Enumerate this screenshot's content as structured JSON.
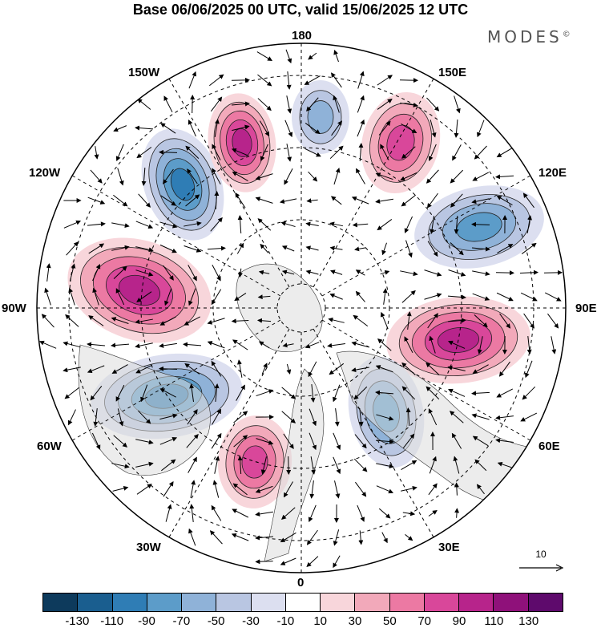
{
  "title": "Base 06/06/2025 00 UTC, valid 15/06/2025 12 UTC",
  "brand": {
    "name": "MODES",
    "mark": "©"
  },
  "longitude_labels": {
    "top": "180",
    "bottom": "0",
    "left": "90W",
    "right": "90E",
    "nw_upper": "150W",
    "nw_lower": "120W",
    "ne_upper": "150E",
    "ne_lower": "120E",
    "sw_upper": "60W",
    "sw_lower": "30W",
    "se_upper": "60E",
    "se_lower": "30E"
  },
  "reference_vector": {
    "label": "10"
  },
  "colorbar": {
    "colors": [
      "#0d3a5c",
      "#1a5e8f",
      "#2f7db5",
      "#5c9cc9",
      "#8fb2d8",
      "#b9c6e2",
      "#dcdff0",
      "#ffffff",
      "#f8d6db",
      "#f2a9ba",
      "#ec79a3",
      "#d9479a",
      "#b7248b",
      "#8f117a",
      "#5e0a6c"
    ],
    "tick_labels": [
      "-130",
      "-110",
      "-90",
      "-70",
      "-50",
      "-30",
      "-10",
      "10",
      "30",
      "50",
      "70",
      "90",
      "110",
      "130"
    ]
  },
  "anomalies": [
    {
      "type": "neg",
      "strength": 5
    },
    {
      "type": "pos",
      "strength": 5
    },
    {
      "type": "neg",
      "strength": 3
    },
    {
      "type": "pos",
      "strength": 4
    },
    {
      "type": "neg",
      "strength": 4
    },
    {
      "type": "pos",
      "strength": 5
    },
    {
      "type": "neg",
      "strength": 5
    },
    {
      "type": "pos",
      "strength": 5
    },
    {
      "type": "neg",
      "strength": 4
    },
    {
      "type": "pos",
      "strength": 4
    }
  ]
}
